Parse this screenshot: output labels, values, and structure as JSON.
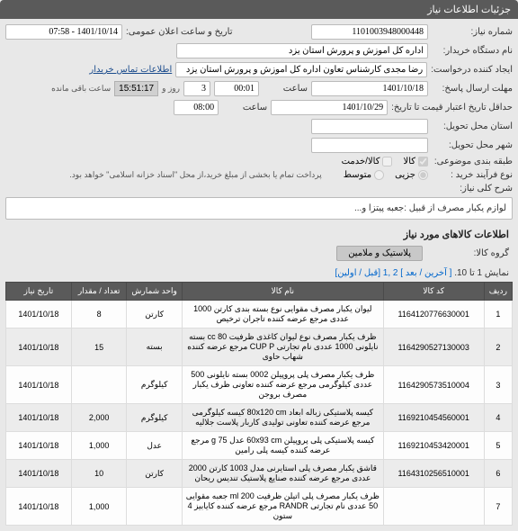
{
  "header": {
    "title": "جزئیات اطلاعات نیاز"
  },
  "form": {
    "need_no_label": "شماره نیاز:",
    "need_no": "1101003948000448",
    "announce_label": "تاریخ و ساعت اعلان عمومی:",
    "announce": "1401/10/14 - 07:58",
    "buyer_org_label": "نام دستگاه خریدار:",
    "buyer_org": "اداره کل آموزش و پرورش استان یزد",
    "requester_label": "ایجاد کننده درخواست:",
    "requester": "رضا مجدی کارشناس تعاون اداره کل آموزش و پرورش استان یزد",
    "contact_link": "اطلاعات تماس خریدار",
    "deadline_label": "مهلت ارسال پاسخ:",
    "deadline_date": "1401/10/18",
    "hour_label": "ساعت",
    "deadline_time": "00:01",
    "day_label": "روز و",
    "days": "3",
    "remain_label": "ساعت باقی مانده",
    "remain_time": "15:51:17",
    "validity_label": "حداقل تاریخ اعتبار قیمت تا تاریخ:",
    "validity_date": "1401/10/29",
    "validity_time": "08:00",
    "region_label": "استان محل تحویل:",
    "city_label": "شهر محل تحویل:",
    "subject_class_label": "طبقه بندی موضوعی:",
    "need_type_label": "نوع فرآیند خرید :",
    "goods_chk": "کالا",
    "service_chk": "کالا/خدمت",
    "partial_chk": "جزیی",
    "medium_chk": "متوسط",
    "payment_note": "پرداخت تمام یا بخشی از مبلغ خرید،از محل \"اسناد خزانه اسلامی\" خواهد بود."
  },
  "desc": {
    "label": "شرح کلی نیاز:",
    "text": "لوازم یکبار مصرف از قبیل :جعبه پیتزا و..."
  },
  "items_section": {
    "title": "اطلاعات کالاهای مورد نیاز",
    "group_label": "گروه کالا:",
    "group_value": "پلاستیک و ملامین",
    "pager_text": "نمایش 1 تا 10.",
    "pager_nav": "[ آخرین / بعد ] 2 ,1 [قبل / اولین]"
  },
  "grid": {
    "columns": [
      "ردیف",
      "کد کالا",
      "نام کالا",
      "واحد شمارش",
      "تعداد / مقدار",
      "تاریخ نیاز"
    ],
    "rows": [
      {
        "idx": "1",
        "code": "1164120776630001",
        "name": "لیوان یکبار مصرف مقوایی نوع بسته بندی کارتن 1000 عددی مرجع عرضه کننده تاجران ترخیص",
        "unit": "کارتن",
        "qty": "8",
        "date": "1401/10/18"
      },
      {
        "idx": "2",
        "code": "1164290527130003",
        "name": "ظرف یکبار مصرف نوع لیوان کاغذی ظرفیت 80 cc بسته نایلونی 1000 عددی نام تجارتی CUP P مرجع عرضه کننده شهاب حاوی",
        "unit": "بسته",
        "qty": "15",
        "date": "1401/10/18"
      },
      {
        "idx": "3",
        "code": "1164290573510004",
        "name": "ظرف یکبار مصرف پلی پروپیلن 0002 بسته نایلونی 500 عددی کیلوگرمی مرجع عرضه کننده تعاونی ظرف یکبار مصرف بروجن",
        "unit": "کیلوگرم",
        "qty": "",
        "date": "1401/10/18"
      },
      {
        "idx": "4",
        "code": "1169210454560001",
        "name": "کیسه پلاستیکی زباله ابعاد 80x120 cm کیسه کیلوگرمی مرجع عرضه کننده تعاونی تولیدی کاربار پلاست جلالیه",
        "unit": "کیلوگرم",
        "qty": "2,000",
        "date": "1401/10/18"
      },
      {
        "idx": "5",
        "code": "1169210453420001",
        "name": "کیسه پلاستیکی پلی پروپیلن 60x93 cm عدل 75 g مرجع عرضه کننده کیسه پلی رامین",
        "unit": "عدل",
        "qty": "1,000",
        "date": "1401/10/18"
      },
      {
        "idx": "6",
        "code": "1164310256510001",
        "name": "قاشق یکبار مصرف پلی استایرنی مدل 1003 کارتن 2000 عددی مرجع عرضه کننده صنایع پلاستیک تندیس ریحان",
        "unit": "کارتن",
        "qty": "10",
        "date": "1401/10/18"
      },
      {
        "idx": "7",
        "code": "",
        "name": "ظرف یکبار مصرف پلی اتیلن ظرفیت 200 ml جعبه مقوایی 50 عددی نام تجارتی RANDR مرجع عرضه کننده کایابیز 4 ستون",
        "unit": "",
        "qty": "1,000",
        "date": "1401/10/18"
      }
    ]
  }
}
